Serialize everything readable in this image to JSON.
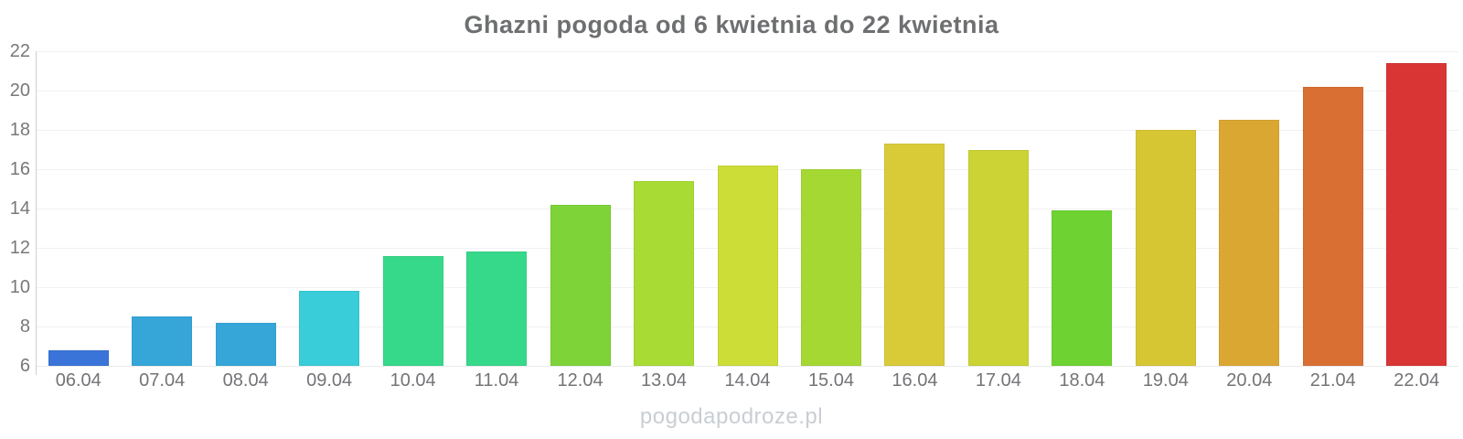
{
  "chart_data": {
    "type": "bar",
    "title": "Ghazni pogoda od 6 kwietnia do 22 kwietnia",
    "categories": [
      "06.04",
      "07.04",
      "08.04",
      "09.04",
      "10.04",
      "11.04",
      "12.04",
      "13.04",
      "14.04",
      "15.04",
      "16.04",
      "17.04",
      "18.04",
      "19.04",
      "20.04",
      "21.04",
      "22.04"
    ],
    "values": [
      6.8,
      8.5,
      8.2,
      9.8,
      11.6,
      11.8,
      14.2,
      15.4,
      16.2,
      16.0,
      17.3,
      17.0,
      13.9,
      18.0,
      18.5,
      20.2,
      21.4
    ],
    "bar_colors": [
      "#3a74d9",
      "#36a6d9",
      "#36a6d9",
      "#38cdd8",
      "#36d98a",
      "#36d98a",
      "#7ed338",
      "#a8dc35",
      "#ccdd38",
      "#a6d834",
      "#d9ca38",
      "#cbd335",
      "#6ed332",
      "#d7c633",
      "#dba733",
      "#d96f33",
      "#d93534"
    ],
    "xlabel": "",
    "ylabel": "",
    "ylim": [
      6,
      22
    ],
    "yticks": [
      6,
      8,
      10,
      12,
      14,
      16,
      18,
      20,
      22
    ],
    "grid": true,
    "legend": "none",
    "watermark": "pogodapodroze.pl",
    "colors": {
      "title_text": "#6e6f71",
      "tick_text": "#77787a",
      "axis_line": "#cfd0d2",
      "gridline": "#f0f1f2",
      "watermark_text": "#c9ced3",
      "background": "#ffffff"
    }
  }
}
